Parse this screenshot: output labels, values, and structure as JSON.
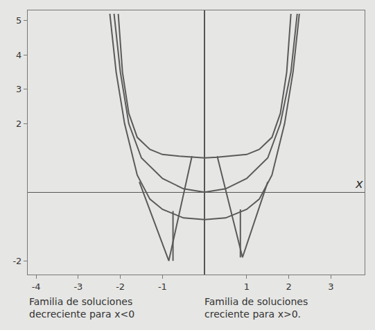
{
  "chart_data": {
    "type": "line",
    "xlabel": "x",
    "xlim": [
      -4.2,
      3.8
    ],
    "ylim": [
      -2.4,
      5.3
    ],
    "xticks": [
      -4,
      -3,
      -2,
      -1,
      1,
      2,
      3
    ],
    "yticks": [
      -2,
      2,
      3,
      4,
      5
    ],
    "grid": false,
    "color": "#5a5a5a",
    "series": [
      {
        "x": [
          -2.05,
          -1.95,
          -1.8,
          -1.6,
          -1.3,
          -1.0,
          -0.6,
          -0.3,
          0.0,
          0.3,
          0.6,
          1.0,
          1.3,
          1.6,
          1.8,
          1.95,
          2.05
        ],
        "values": [
          5.2,
          3.5,
          2.3,
          1.6,
          1.25,
          1.1,
          1.05,
          1.02,
          1.0,
          1.02,
          1.05,
          1.1,
          1.25,
          1.6,
          2.3,
          3.5,
          5.2
        ]
      },
      {
        "x": [
          -2.15,
          -2.0,
          -1.8,
          -1.5,
          -1.0,
          -0.5,
          0.0,
          0.5,
          1.0,
          1.5,
          1.8,
          2.05,
          2.2
        ],
        "values": [
          5.2,
          3.5,
          2.0,
          1.0,
          0.4,
          0.1,
          0.0,
          0.1,
          0.4,
          1.0,
          2.0,
          3.5,
          5.2
        ]
      },
      {
        "x": [
          -2.25,
          -2.1,
          -1.9,
          -1.6,
          -1.3,
          -1.0,
          -0.5,
          0.0,
          0.5,
          1.0,
          1.3,
          1.6,
          1.9,
          2.1,
          2.25
        ],
        "values": [
          5.2,
          3.5,
          2.0,
          0.5,
          -0.2,
          -0.5,
          -0.75,
          -0.8,
          -0.75,
          -0.5,
          -0.2,
          0.5,
          2.0,
          3.5,
          5.2
        ]
      },
      {
        "x": [
          -1.55,
          -0.85,
          -0.3,
          null,
          -0.75,
          -0.75
        ],
        "values": [
          0.3,
          -2.0,
          1.05,
          null,
          -2.0,
          -0.55
        ]
      },
      {
        "x": [
          0.3,
          0.9,
          1.5,
          null,
          0.85,
          0.85
        ],
        "values": [
          1.05,
          -1.9,
          0.3,
          null,
          -1.9,
          -0.5
        ]
      }
    ],
    "annotations": [
      "Familia de soluciones decreciente para x<0",
      "Familia de soluciones creciente para x>0."
    ]
  }
}
